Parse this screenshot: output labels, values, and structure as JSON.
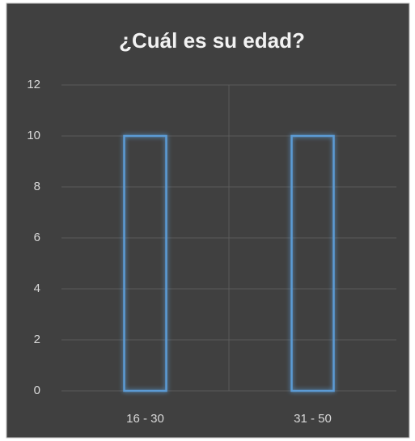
{
  "chart_data": {
    "type": "bar",
    "title": "¿Cuál es su edad?",
    "categories": [
      "16 - 30",
      "31 - 50"
    ],
    "values": [
      10,
      10
    ],
    "color": "#5b9bd5",
    "ylim": [
      0,
      12
    ],
    "yticks": [
      0,
      2,
      4,
      6,
      8,
      10,
      12
    ],
    "grid": true
  }
}
